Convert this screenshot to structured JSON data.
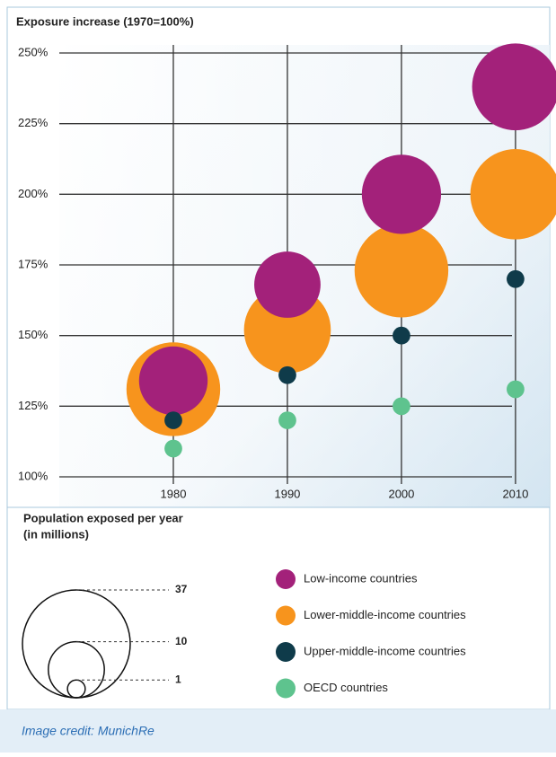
{
  "chart_data": {
    "type": "bubble",
    "title": "Exposure increase (1970=100%)",
    "x": [
      1980,
      1990,
      2000,
      2010
    ],
    "xlim": [
      1970,
      2013
    ],
    "xticks": [
      1980,
      1990,
      2000,
      2010
    ],
    "ylim": [
      100,
      250
    ],
    "yticks": [
      {
        "value": 100,
        "label": "100%"
      },
      {
        "value": 125,
        "label": "125%"
      },
      {
        "value": 150,
        "label": "150%"
      },
      {
        "value": 175,
        "label": "175%"
      },
      {
        "value": 200,
        "label": "200%"
      },
      {
        "value": 225,
        "label": "225%"
      },
      {
        "value": 250,
        "label": "250%"
      }
    ],
    "grid": true,
    "series": [
      {
        "name": "Low-income countries",
        "color": "#a3217a",
        "values": [
          134,
          168,
          200,
          238
        ],
        "sizes": [
          15,
          14,
          20,
          24
        ]
      },
      {
        "name": "Lower-middle-income countries",
        "color": "#f7941d",
        "values": [
          131,
          152,
          173,
          200
        ],
        "sizes": [
          28,
          24,
          28,
          26
        ]
      },
      {
        "name": "Upper-middle-income countries",
        "color": "#0f3b4a",
        "values": [
          120,
          136,
          150,
          170
        ],
        "sizes": [
          1,
          1,
          1,
          1
        ]
      },
      {
        "name": "OECD countries",
        "color": "#5ec38e",
        "values": [
          110,
          120,
          125,
          131
        ],
        "sizes": [
          1,
          1,
          1,
          1
        ]
      }
    ],
    "size_legend_title": [
      "Population exposed per year",
      "(in millions)"
    ],
    "size_legend": [
      37,
      10,
      1
    ]
  },
  "caption": "Image credit: MunichRe"
}
